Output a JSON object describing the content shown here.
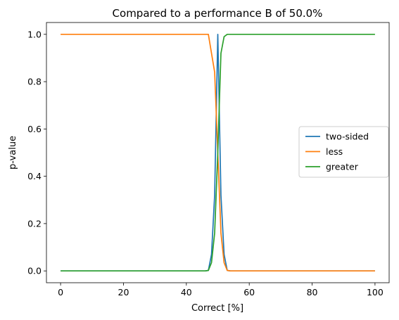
{
  "chart_data": {
    "type": "line",
    "title": "Compared to a performance B of 50.0%",
    "xlabel": "Correct [%]",
    "ylabel": "p-value",
    "xlim": [
      -4.5,
      104.5
    ],
    "ylim": [
      -0.05,
      1.05
    ],
    "xticks": [
      0,
      20,
      40,
      60,
      80,
      100
    ],
    "xtick_labels": [
      "0",
      "20",
      "40",
      "60",
      "80",
      "100"
    ],
    "yticks": [
      0.0,
      0.2,
      0.4,
      0.6,
      0.8,
      1.0
    ],
    "ytick_labels": [
      "0.0",
      "0.2",
      "0.4",
      "0.6",
      "0.8",
      "1.0"
    ],
    "grid": false,
    "legend_position": "center right",
    "series": [
      {
        "name": "two-sided",
        "color": "#1f77b4",
        "x": [
          0,
          46,
          47,
          48,
          49,
          50,
          51,
          52,
          53,
          54,
          100
        ],
        "y": [
          0,
          0,
          0.002,
          0.07,
          0.32,
          1.0,
          0.32,
          0.07,
          0.002,
          0,
          0
        ]
      },
      {
        "name": "less",
        "color": "#ff7f0e",
        "x": [
          0,
          46,
          47,
          48,
          49,
          50,
          51,
          52,
          53,
          54,
          100
        ],
        "y": [
          1,
          1,
          1.0,
          0.92,
          0.84,
          0.5,
          0.16,
          0.035,
          0.002,
          0,
          0
        ]
      },
      {
        "name": "greater",
        "color": "#2ca02c",
        "x": [
          0,
          46,
          47,
          48,
          49,
          50,
          51,
          52,
          53,
          54,
          100
        ],
        "y": [
          0,
          0,
          0.002,
          0.035,
          0.16,
          0.5,
          0.92,
          0.99,
          1.0,
          1,
          1
        ]
      }
    ]
  }
}
